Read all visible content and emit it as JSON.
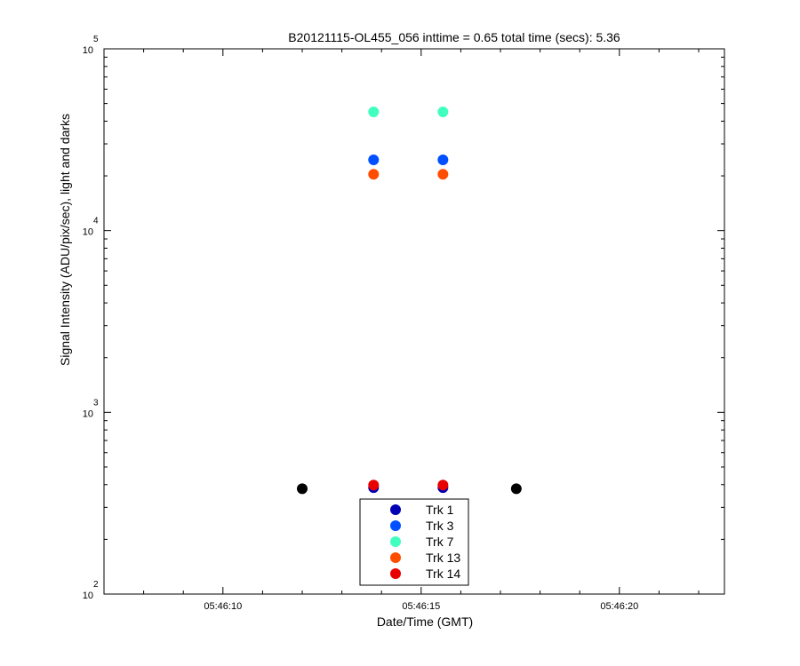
{
  "chart_data": {
    "type": "scatter",
    "title": "B20121115-OL455_056 inttime = 0.65 total time (secs): 5.36",
    "xlabel": "Date/Time (GMT)",
    "ylabel": "Signal Intensity (ADU/pix/sec), light and darks",
    "xlim": [
      "05:46:07",
      "05:46:23"
    ],
    "xlim_seconds": [
      7.0,
      22.65
    ],
    "ylim": [
      100,
      100000
    ],
    "yscale": "log",
    "grid": false,
    "legend_position": "bottom-center",
    "x_ticks": [
      {
        "label": "05:46:10",
        "sec": 10
      },
      {
        "label": "05:46:15",
        "sec": 15
      },
      {
        "label": "05:46:20",
        "sec": 20
      }
    ],
    "y_ticks": [
      {
        "base": "10",
        "exp": "2",
        "value": 100
      },
      {
        "base": "10",
        "exp": "3",
        "value": 1000
      },
      {
        "base": "10",
        "exp": "4",
        "value": 10000
      },
      {
        "base": "10",
        "exp": "5",
        "value": 100000
      }
    ],
    "series": [
      {
        "name": "Trk 1",
        "color": "#0000b4",
        "points": [
          {
            "t": "05:46:13.8",
            "sec": 13.8,
            "y": 385
          },
          {
            "t": "05:46:15.55",
            "sec": 15.55,
            "y": 385
          }
        ]
      },
      {
        "name": "Trk 3",
        "color": "#0050ff",
        "points": [
          {
            "t": "05:46:13.8",
            "sec": 13.8,
            "y": 24500
          },
          {
            "t": "05:46:15.55",
            "sec": 15.55,
            "y": 24500
          }
        ]
      },
      {
        "name": "Trk 7",
        "color": "#40ffbf",
        "points": [
          {
            "t": "05:46:13.8",
            "sec": 13.8,
            "y": 45000
          },
          {
            "t": "05:46:15.55",
            "sec": 15.55,
            "y": 45000
          }
        ]
      },
      {
        "name": "Trk 13",
        "color": "#ff4d00",
        "points": [
          {
            "t": "05:46:13.8",
            "sec": 13.8,
            "y": 20400
          },
          {
            "t": "05:46:15.55",
            "sec": 15.55,
            "y": 20400
          }
        ]
      },
      {
        "name": "Trk 14",
        "color": "#e80000",
        "points": [
          {
            "t": "05:46:13.8",
            "sec": 13.8,
            "y": 398
          },
          {
            "t": "05:46:15.55",
            "sec": 15.55,
            "y": 398
          }
        ]
      }
    ],
    "dark_points": {
      "color": "#000000",
      "points": [
        {
          "t": "05:46:12",
          "sec": 12.0,
          "y": 380
        },
        {
          "t": "05:46:17.4",
          "sec": 17.4,
          "y": 380
        }
      ]
    }
  }
}
